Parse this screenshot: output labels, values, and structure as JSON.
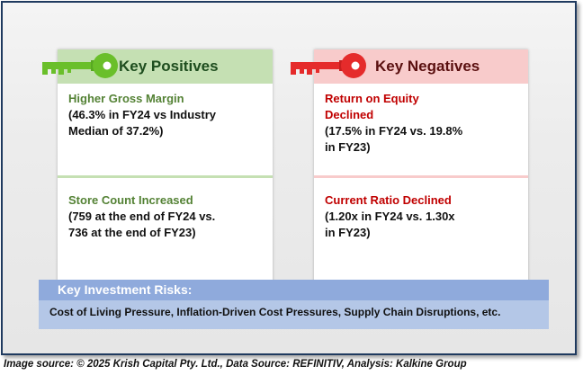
{
  "positives": {
    "heading": "Key Positives",
    "items": [
      {
        "title": "Higher Gross Margin",
        "detail_1": "(46.3% in FY24 vs Industry",
        "detail_2": "Median of 37.2%)"
      },
      {
        "title": "Store Count Increased",
        "detail_1": "(759 at the end of FY24 vs.",
        "detail_2": "736 at the end of FY23)"
      }
    ]
  },
  "negatives": {
    "heading": "Key Negatives",
    "items": [
      {
        "title_1": "Return on Equity",
        "title_2": "Declined",
        "detail_1": "(17.5% in FY24 vs. 19.8%",
        "detail_2": "in FY23)"
      },
      {
        "title": "Current Ratio Declined",
        "detail_1": "(1.20x in FY24 vs. 1.30x",
        "detail_2": "in FY23)"
      }
    ]
  },
  "risks": {
    "heading": "Key Investment Risks:",
    "text": "Cost of Living Pressure, Inflation-Driven Cost Pressures, Supply Chain Disruptions, etc."
  },
  "footer": {
    "source": "Image source: © 2025 Krish Capital Pty. Ltd., Data Source: REFINITIV, Analysis: Kalkine Group"
  },
  "colors": {
    "positive_accent": "#6abf2a",
    "negative_accent": "#e52b2b",
    "risk_header": "#8faadc",
    "risk_body": "#b4c7e7"
  },
  "icons": {
    "positive": "key-icon",
    "negative": "key-icon"
  }
}
